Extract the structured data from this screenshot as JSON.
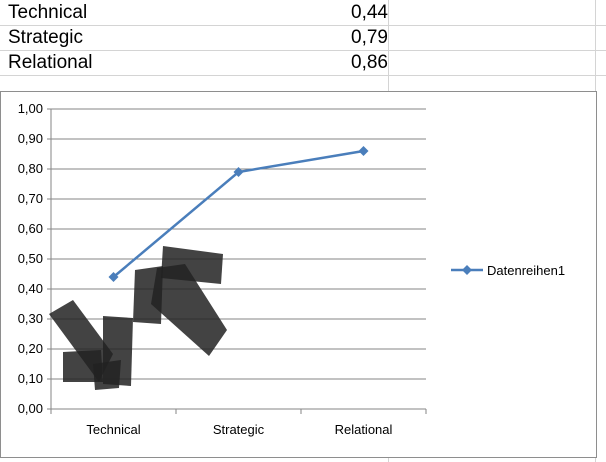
{
  "sheet": {
    "rows": [
      {
        "label": "Technical",
        "value": "0,44"
      },
      {
        "label": "Strategic",
        "value": "0,79"
      },
      {
        "label": "Relational",
        "value": "0,86"
      }
    ]
  },
  "chart_data": {
    "type": "line",
    "categories": [
      "Technical",
      "Strategic",
      "Relational"
    ],
    "series": [
      {
        "name": "Datenreihen1",
        "values": [
          0.44,
          0.79,
          0.86
        ],
        "color": "#4a7ebb"
      }
    ],
    "y_ticks": [
      "0,00",
      "0,10",
      "0,20",
      "0,30",
      "0,40",
      "0,50",
      "0,60",
      "0,70",
      "0,80",
      "0,90",
      "1,00"
    ],
    "ylim": [
      0,
      1.0
    ],
    "grid": true,
    "legend_position": "right",
    "title": "",
    "xlabel": "",
    "ylabel": ""
  },
  "overlay": {
    "description_color": "#222222"
  }
}
